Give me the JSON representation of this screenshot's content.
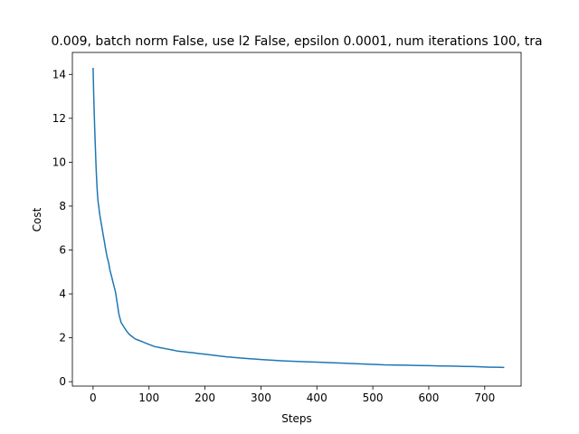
{
  "chart_data": {
    "type": "line",
    "title": "0.009, batch norm False, use l2 False, epsilon 0.0001, num iterations 100, tra",
    "xlabel": "Steps",
    "ylabel": "Cost",
    "xlim": [
      -37,
      765
    ],
    "ylim": [
      -0.2,
      15.0
    ],
    "xticks": [
      0,
      100,
      200,
      300,
      400,
      500,
      600,
      700
    ],
    "yticks": [
      0,
      2,
      4,
      6,
      8,
      10,
      12,
      14
    ],
    "grid": false,
    "series": [
      {
        "color": "#1f77b4",
        "x": [
          0,
          1,
          2,
          3,
          4,
          5,
          6,
          7,
          8,
          9,
          10,
          12,
          14,
          16,
          18,
          20,
          22,
          25,
          28,
          30,
          33,
          36,
          40,
          43,
          46,
          50,
          55,
          60,
          65,
          70,
          75,
          80,
          90,
          100,
          110,
          120,
          130,
          140,
          150,
          160,
          170,
          180,
          190,
          200,
          210,
          220,
          230,
          240,
          250,
          260,
          270,
          280,
          290,
          300,
          320,
          340,
          360,
          380,
          400,
          420,
          440,
          460,
          480,
          500,
          520,
          540,
          560,
          580,
          600,
          620,
          640,
          660,
          680,
          690,
          700,
          710,
          720,
          735
        ],
        "y": [
          14.3,
          13.2,
          12.3,
          11.5,
          10.7,
          10.0,
          9.4,
          8.9,
          8.5,
          8.2,
          8.0,
          7.6,
          7.3,
          7.0,
          6.7,
          6.4,
          6.1,
          5.7,
          5.4,
          5.1,
          4.8,
          4.5,
          4.1,
          3.6,
          3.1,
          2.7,
          2.5,
          2.3,
          2.15,
          2.05,
          1.95,
          1.9,
          1.8,
          1.7,
          1.6,
          1.55,
          1.5,
          1.45,
          1.4,
          1.37,
          1.34,
          1.31,
          1.28,
          1.25,
          1.22,
          1.19,
          1.16,
          1.13,
          1.11,
          1.09,
          1.07,
          1.05,
          1.03,
          1.01,
          0.98,
          0.95,
          0.93,
          0.91,
          0.89,
          0.87,
          0.85,
          0.83,
          0.81,
          0.79,
          0.77,
          0.76,
          0.75,
          0.74,
          0.73,
          0.72,
          0.71,
          0.7,
          0.69,
          0.68,
          0.67,
          0.66,
          0.66,
          0.65
        ]
      }
    ]
  }
}
